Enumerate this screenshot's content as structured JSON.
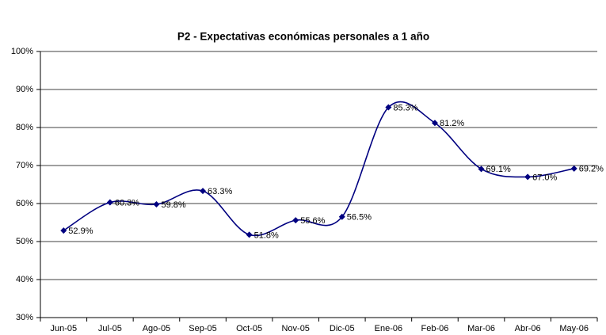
{
  "chart_data": {
    "type": "line",
    "title": "P2 - Expectativas económicas personales a 1 año",
    "categories": [
      "Jun-05",
      "Jul-05",
      "Ago-05",
      "Sep-05",
      "Oct-05",
      "Nov-05",
      "Dic-05",
      "Ene-06",
      "Feb-06",
      "Mar-06",
      "Abr-06",
      "May-06"
    ],
    "series": [
      {
        "color": "#000080",
        "values": [
          52.9,
          60.3,
          59.8,
          63.3,
          51.8,
          55.6,
          56.5,
          85.3,
          81.2,
          69.1,
          67.0,
          69.2
        ],
        "value_labels": [
          "52.9%",
          "60.3%",
          "59.8%",
          "63.3%",
          "51.8%",
          "55.6%",
          "56.5%",
          "85.3%",
          "81.2%",
          "69.1%",
          "67.0%",
          "69.2%"
        ]
      }
    ],
    "ylim": [
      30,
      100
    ],
    "yticks": [
      {
        "value": 30,
        "label": "30%"
      },
      {
        "value": 40,
        "label": "40%"
      },
      {
        "value": 50,
        "label": "50%"
      },
      {
        "value": 60,
        "label": "60%"
      },
      {
        "value": 70,
        "label": "70%"
      },
      {
        "value": 80,
        "label": "80%"
      },
      {
        "value": 90,
        "label": "90%"
      },
      {
        "value": 100,
        "label": "100%"
      }
    ],
    "grid": true,
    "smooth": true
  }
}
